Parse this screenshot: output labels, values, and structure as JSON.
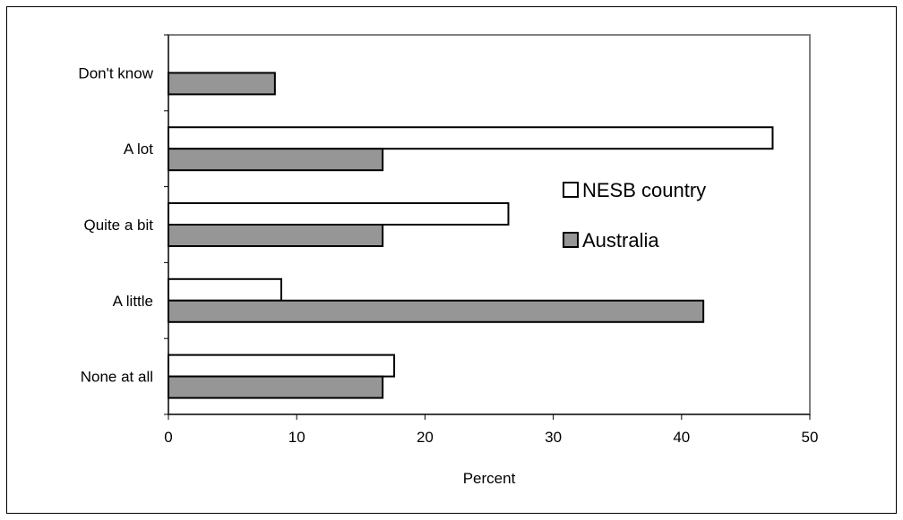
{
  "chart_data": {
    "type": "bar",
    "orientation": "horizontal",
    "categories": [
      "Don't know",
      "A lot",
      "Quite a bit",
      "A little",
      "None at all"
    ],
    "series": [
      {
        "name": "NESB country",
        "values": [
          0,
          47.1,
          26.5,
          8.8,
          17.6
        ],
        "color": "#ffffff"
      },
      {
        "name": "Australia",
        "values": [
          8.3,
          16.7,
          16.7,
          41.7,
          16.7
        ],
        "color": "#969696"
      }
    ],
    "xlabel": "Percent",
    "ylabel": "",
    "xlim": [
      0,
      50
    ],
    "xticks": [
      "0",
      "10",
      "20",
      "30",
      "40",
      "50"
    ],
    "legend": "inside-right",
    "grid": false
  }
}
